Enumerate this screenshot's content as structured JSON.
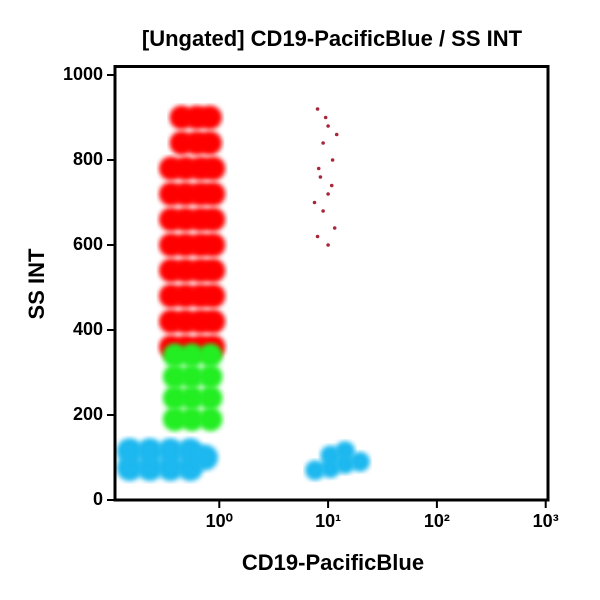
{
  "chart_data": {
    "type": "scatter",
    "title": "[Ungated] CD19-PacificBlue / SS INT",
    "x_label": "CD19-PacificBlue",
    "y_label": "SS INT",
    "x_scale": "log",
    "xlim": [
      0.11,
      1050
    ],
    "ylim": [
      0,
      1020
    ],
    "xticks": [
      {
        "value": 1,
        "label": "10⁰"
      },
      {
        "value": 10,
        "label": "10¹"
      },
      {
        "value": 100,
        "label": "10²"
      },
      {
        "value": 1000,
        "label": "10³"
      }
    ],
    "yticks": [
      0,
      200,
      400,
      600,
      800,
      1000
    ],
    "series": [
      {
        "color": "#ff0000",
        "x": [
          0.36,
          0.49,
          0.67,
          0.88,
          0.36,
          0.49,
          0.67,
          0.88,
          0.36,
          0.49,
          0.67,
          0.88,
          0.36,
          0.49,
          0.67,
          0.88,
          0.36,
          0.49,
          0.67,
          0.88,
          0.36,
          0.49,
          0.67,
          0.88,
          0.36,
          0.49,
          0.67,
          0.88,
          0.36,
          0.49,
          0.67,
          0.88,
          0.45,
          0.62,
          0.82,
          0.45,
          0.62,
          0.82
        ],
        "values": [
          360,
          360,
          360,
          360,
          420,
          420,
          420,
          420,
          480,
          480,
          480,
          480,
          540,
          540,
          540,
          540,
          600,
          600,
          600,
          600,
          660,
          660,
          660,
          660,
          720,
          720,
          720,
          720,
          780,
          780,
          780,
          780,
          840,
          840,
          840,
          900,
          900,
          900
        ]
      },
      {
        "color": "#22ee22",
        "x": [
          0.39,
          0.56,
          0.83,
          0.39,
          0.56,
          0.83,
          0.39,
          0.56,
          0.83,
          0.39,
          0.56,
          0.83
        ],
        "values": [
          190,
          190,
          190,
          240,
          240,
          240,
          290,
          290,
          290,
          340,
          340,
          340
        ]
      },
      {
        "color": "#1fb8ef",
        "x": [
          0.15,
          0.23,
          0.355,
          0.54,
          0.15,
          0.23,
          0.355,
          0.54,
          0.74
        ],
        "values": [
          75,
          75,
          75,
          75,
          115,
          115,
          115,
          115,
          100
        ]
      },
      {
        "color": "#1fb8ef",
        "x": [
          7.6,
          10.5,
          14.3,
          19.6,
          10.5,
          14.3
        ],
        "values": [
          70,
          75,
          85,
          90,
          105,
          115
        ]
      },
      {
        "color": "#a8283a",
        "x": [
          8,
          10,
          9,
          11,
          8.5,
          10,
          9,
          11.5,
          8,
          10,
          7.5,
          12,
          9.5,
          8.2,
          10.8
        ],
        "values": [
          920,
          880,
          840,
          800,
          760,
          720,
          680,
          640,
          620,
          600,
          700,
          860,
          900,
          780,
          740
        ]
      }
    ]
  }
}
